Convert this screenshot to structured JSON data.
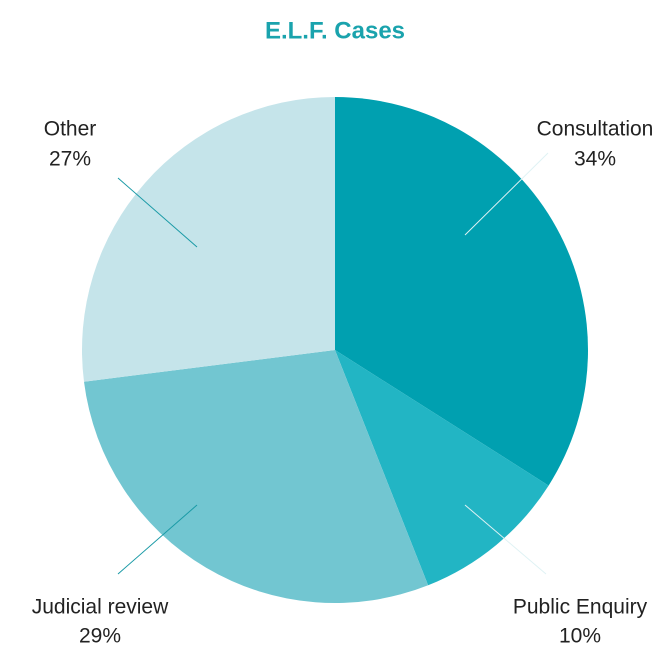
{
  "chart_data": {
    "type": "pie",
    "title": "E.L.F. Cases",
    "categories": [
      "Consultation",
      "Public Enquiry",
      "Judicial review",
      "Other"
    ],
    "values": [
      34,
      10,
      29,
      27
    ],
    "value_labels": [
      "34%",
      "10%",
      "29%",
      "27%"
    ],
    "colors": [
      "#00a0b0",
      "#22b5c4",
      "#72c6d1",
      "#c5e4ea"
    ]
  }
}
